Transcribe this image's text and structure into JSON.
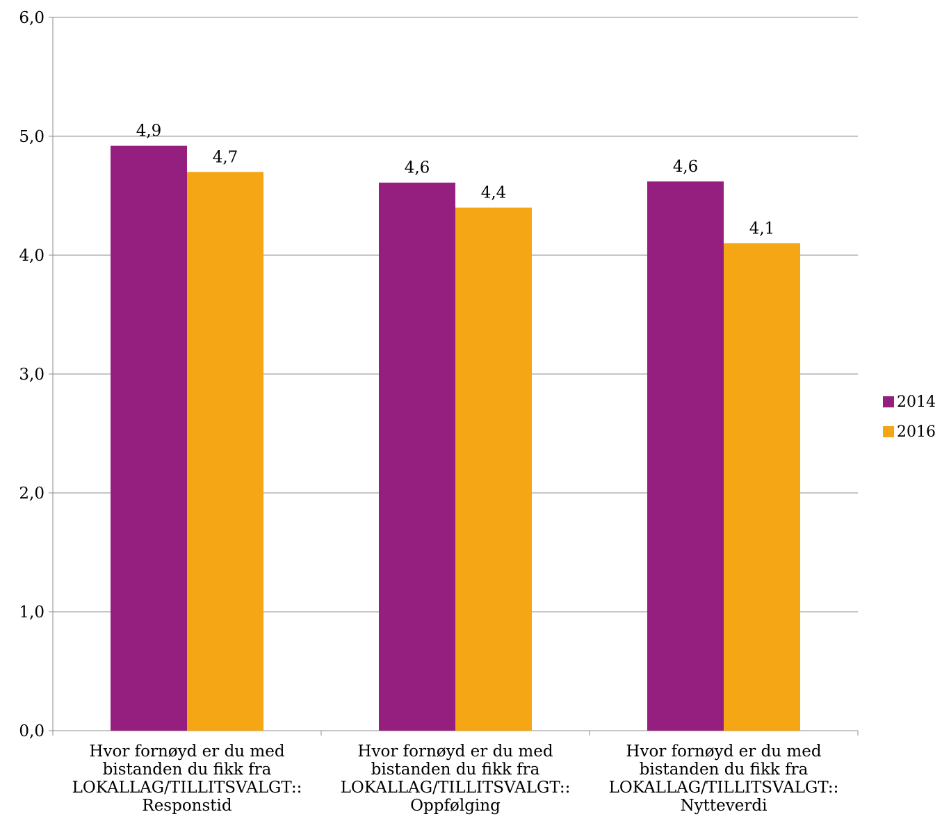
{
  "chart_data": {
    "type": "bar",
    "title": "",
    "xlabel": "",
    "ylabel": "",
    "ylim": [
      0,
      6
    ],
    "y_ticks": [
      "0,0",
      "1,0",
      "2,0",
      "3,0",
      "4,0",
      "5,0",
      "6,0"
    ],
    "grid": true,
    "legend_position": "right",
    "categories": [
      {
        "line1": "Hvor fornøyd er du med",
        "line2": "bistanden du fikk fra",
        "line3": "LOKALLAG/TILLITSVALGT::",
        "line4": "Responstid"
      },
      {
        "line1": "Hvor fornøyd er du med",
        "line2": "bistanden du fikk fra",
        "line3": "LOKALLAG/TILLITSVALGT::",
        "line4": "Oppfølging"
      },
      {
        "line1": "Hvor fornøyd er du med",
        "line2": "bistanden du fikk fra",
        "line3": "LOKALLAG/TILLITSVALGT::",
        "line4": "Nytteverdi"
      }
    ],
    "series": [
      {
        "name": "2014",
        "color": "#941F7F",
        "values": [
          4.92,
          4.61,
          4.62
        ],
        "labels": [
          "4,9",
          "4,6",
          "4,6"
        ]
      },
      {
        "name": "2016",
        "color": "#F5A614",
        "values": [
          4.7,
          4.4,
          4.1
        ],
        "labels": [
          "4,7",
          "4,4",
          "4,1"
        ]
      }
    ]
  }
}
